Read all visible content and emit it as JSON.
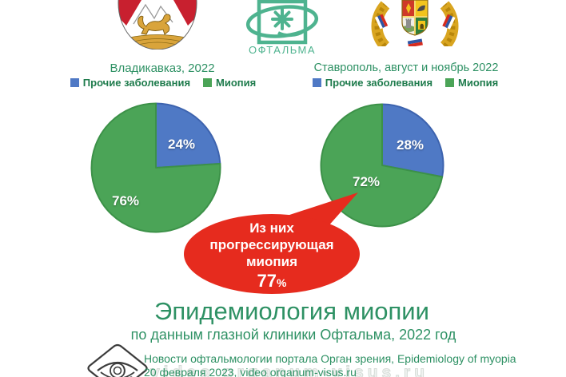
{
  "header": {
    "oftalma_label": "ОФТАЛЬМА"
  },
  "chart_data": [
    {
      "type": "pie",
      "title": "Владикавказ, 2022",
      "labels": [
        "Прочие заболевания",
        "Миопия"
      ],
      "values": [
        24,
        76
      ],
      "display_labels": [
        "24%",
        "76%"
      ],
      "colors": [
        "#4F79C5",
        "#4BA457"
      ],
      "stroke_colors": [
        "#3D63AE",
        "#3C9148"
      ],
      "start_angle_deg": 0,
      "direction": "clockwise",
      "legend_position": "top"
    },
    {
      "type": "pie",
      "title": "Ставрополь, август и ноябрь 2022",
      "labels": [
        "Прочие заболевания",
        "Миопия"
      ],
      "values": [
        28,
        72
      ],
      "display_labels": [
        "28%",
        "72%"
      ],
      "colors": [
        "#4F79C5",
        "#4BA457"
      ],
      "stroke_colors": [
        "#3D63AE",
        "#3C9148"
      ],
      "start_angle_deg": 0,
      "direction": "clockwise",
      "legend_position": "top"
    }
  ],
  "callout": {
    "line1": "Из них",
    "line2": "прогрессирующая",
    "line3": "миопия",
    "value": "77",
    "percent_sign": "%",
    "color": "#E62B1E"
  },
  "title": {
    "main": "Эпидемиология миопии",
    "subtitle": "по данным глазной клиники Офтальма, 2022 год"
  },
  "footer": {
    "line1": "Новости офтальмологии портала Орган зрения, Epidemiology of myopia",
    "line2": "20 февраля 2023, video organum-visus.ru",
    "watermark": "video organum-visus.ru"
  },
  "colors": {
    "accent_green_text": "#2E9164",
    "legend_text": "#1E7B4C",
    "logo_jade": "#4EB38F",
    "pie_green": "#4BA457",
    "pie_blue": "#4F79C5",
    "callout_red": "#E62B1E"
  }
}
